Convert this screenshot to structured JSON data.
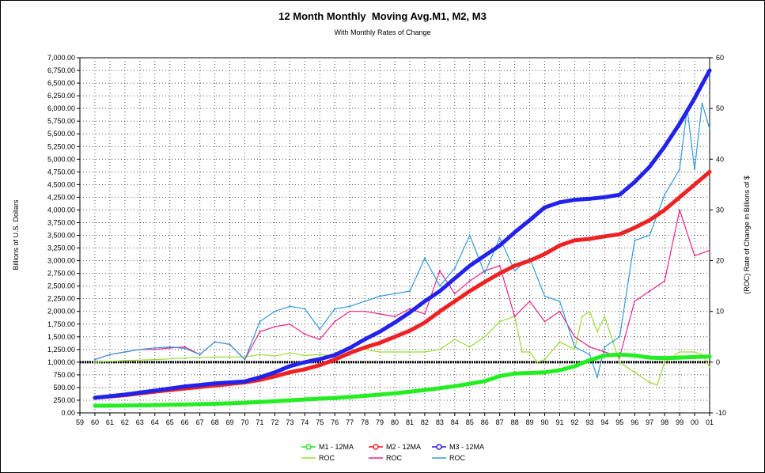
{
  "chart_data": {
    "type": "line",
    "title": "12 Month Monthly  Moving Avg.M1, M2, M3",
    "subtitle": "With Monthly Rates of Change",
    "ylabel": "Billions of U.S. Dollars",
    "y2label": "(ROC) Rate of Change in Billions of $",
    "xlabel": "",
    "x_categories": [
      "59",
      "60",
      "61",
      "62",
      "63",
      "64",
      "65",
      "66",
      "67",
      "68",
      "69",
      "70",
      "71",
      "72",
      "73",
      "74",
      "75",
      "76",
      "77",
      "78",
      "79",
      "80",
      "81",
      "82",
      "83",
      "84",
      "85",
      "86",
      "87",
      "88",
      "89",
      "90",
      "91",
      "92",
      "93",
      "94",
      "95",
      "96",
      "97",
      "98",
      "99",
      "00",
      "01"
    ],
    "ylim": [
      0,
      7000
    ],
    "y_ticks": [
      "0.00",
      "250.00",
      "500.00",
      "750.00",
      "1,000.00",
      "1,250.00",
      "1,500.00",
      "1,750.00",
      "2,000.00",
      "2,250.00",
      "2,500.00",
      "2,750.00",
      "3,000.00",
      "3,250.00",
      "3,500.00",
      "3,750.00",
      "4,000.00",
      "4,250.00",
      "4,500.00",
      "4,750.00",
      "5,000.00",
      "5,250.00",
      "5,500.00",
      "5,750.00",
      "6,000.00",
      "6,250.00",
      "6,500.00",
      "6,750.00",
      "7,000.00"
    ],
    "y2lim": [
      -10,
      60
    ],
    "y2_ticks": [
      "-10",
      "0",
      "10",
      "20",
      "30",
      "40",
      "50",
      "60"
    ],
    "grid": true,
    "legend_position": "bottom",
    "series": [
      {
        "name": "M1 - 12MA",
        "axis": "left",
        "color": "#22ee22",
        "marker": "circle",
        "x": [
          60,
          62,
          64,
          66,
          68,
          70,
          72,
          74,
          76,
          78,
          80,
          82,
          84,
          86,
          87,
          88,
          90,
          91,
          92,
          93,
          94,
          95,
          96,
          97,
          98,
          99,
          100,
          101
        ],
        "values": [
          140,
          145,
          155,
          165,
          180,
          200,
          230,
          265,
          295,
          335,
          385,
          450,
          525,
          625,
          725,
          775,
          800,
          840,
          920,
          1040,
          1130,
          1150,
          1130,
          1090,
          1080,
          1090,
          1100,
          1110
        ]
      },
      {
        "name": "M2 - 12MA",
        "axis": "left",
        "color": "#ee2222",
        "marker": "circle",
        "x": [
          60,
          62,
          64,
          66,
          68,
          70,
          71,
          72,
          73,
          74,
          75,
          76,
          77,
          78,
          79,
          80,
          81,
          82,
          83,
          84,
          85,
          86,
          87,
          88,
          89,
          90,
          91,
          92,
          93,
          94,
          95,
          96,
          97,
          98,
          99,
          100,
          101
        ],
        "values": [
          300,
          350,
          420,
          480,
          540,
          600,
          650,
          720,
          800,
          860,
          940,
          1050,
          1180,
          1290,
          1380,
          1500,
          1620,
          1780,
          2000,
          2200,
          2400,
          2580,
          2750,
          2900,
          3000,
          3130,
          3300,
          3400,
          3430,
          3480,
          3520,
          3650,
          3800,
          4000,
          4250,
          4500,
          4750
        ]
      },
      {
        "name": "M3 - 12MA",
        "axis": "left",
        "color": "#2222ee",
        "marker": "circle",
        "x": [
          60,
          62,
          64,
          66,
          68,
          70,
          71,
          72,
          73,
          74,
          75,
          76,
          77,
          78,
          79,
          80,
          81,
          82,
          83,
          84,
          85,
          86,
          87,
          88,
          89,
          90,
          91,
          92,
          93,
          94,
          95,
          96,
          97,
          98,
          99,
          100,
          101
        ],
        "values": [
          300,
          360,
          440,
          520,
          580,
          620,
          700,
          800,
          920,
          1000,
          1060,
          1140,
          1280,
          1450,
          1600,
          1780,
          1980,
          2200,
          2400,
          2650,
          2900,
          3100,
          3300,
          3560,
          3800,
          4050,
          4150,
          4200,
          4220,
          4250,
          4300,
          4550,
          4850,
          5250,
          5700,
          6200,
          6750
        ]
      },
      {
        "name": "ROC",
        "axis": "right",
        "color": "#99dd33",
        "x": [
          60,
          62,
          64,
          66,
          68,
          70,
          71,
          72,
          73,
          74,
          75,
          76,
          77,
          78,
          79,
          80,
          81,
          82,
          83,
          84,
          85,
          86,
          87,
          88,
          88.5,
          89,
          89.5,
          90,
          91,
          92,
          92.5,
          93,
          93.5,
          94,
          95,
          96,
          97,
          97.5,
          98,
          99,
          100,
          100.5,
          101
        ],
        "values": [
          0,
          0.3,
          0.5,
          0.8,
          1,
          1,
          1.5,
          1.2,
          1.8,
          1.3,
          1.5,
          1.2,
          2.5,
          2.5,
          2,
          2,
          2,
          2,
          2.5,
          4.5,
          3,
          5,
          8,
          9,
          2,
          2,
          0,
          0.5,
          4,
          2.5,
          9,
          10,
          6,
          9,
          0,
          -2,
          -4,
          -4.5,
          0,
          2,
          2,
          1.5,
          -1
        ]
      },
      {
        "name": "ROC",
        "axis": "right",
        "color": "#ee2288",
        "x": [
          60,
          61,
          62,
          63,
          64,
          65,
          66,
          67,
          68,
          69,
          70,
          71,
          72,
          73,
          74,
          75,
          76,
          77,
          78,
          79,
          80,
          81,
          82,
          83,
          84,
          85,
          86,
          87,
          88,
          89,
          90,
          91,
          92,
          93,
          94,
          95,
          96,
          97,
          98,
          99,
          100,
          101
        ],
        "values": [
          0.5,
          1.5,
          2,
          2.5,
          2.5,
          2.8,
          3,
          1.5,
          4,
          3.5,
          0.5,
          6,
          7,
          7.5,
          5.5,
          4.5,
          8,
          10,
          10,
          9.5,
          9,
          10.5,
          9.5,
          18,
          13.5,
          16,
          18,
          19,
          9,
          12,
          8,
          10,
          5,
          3,
          2,
          1,
          12,
          14,
          16,
          30,
          21,
          22
        ]
      },
      {
        "name": "ROC",
        "axis": "right",
        "color": "#3399dd",
        "x": [
          60,
          61,
          62,
          63,
          64,
          65,
          66,
          67,
          68,
          69,
          70,
          71,
          72,
          73,
          74,
          75,
          76,
          77,
          78,
          79,
          80,
          81,
          82,
          83,
          84,
          85,
          86,
          87,
          88,
          89,
          90,
          91,
          92,
          93,
          93.5,
          94,
          95,
          96,
          97,
          98,
          99,
          99.5,
          100,
          100.5,
          101
        ],
        "values": [
          0.5,
          1.5,
          2,
          2.5,
          2.8,
          3,
          2.7,
          1.5,
          4,
          3.5,
          0.5,
          8,
          10,
          11,
          10.5,
          6.5,
          10.5,
          11,
          12,
          13,
          13.5,
          14,
          20.5,
          15,
          18.5,
          25,
          17.5,
          24.5,
          18,
          20.5,
          13,
          12,
          3,
          1.5,
          -3,
          3,
          5,
          24,
          25,
          33,
          38,
          50,
          38,
          51,
          46
        ]
      }
    ]
  }
}
